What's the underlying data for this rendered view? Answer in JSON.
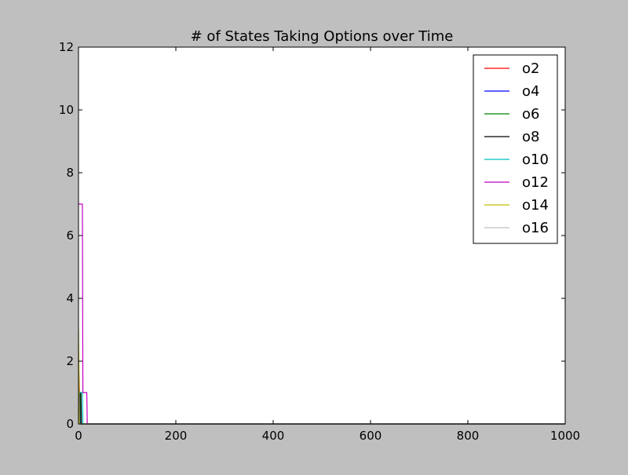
{
  "chart_data": {
    "type": "line",
    "title": "# of States Taking Options over Time",
    "xlabel": "",
    "ylabel": "",
    "xlim": [
      0,
      1000
    ],
    "ylim": [
      0,
      12
    ],
    "x_ticks": [
      "0",
      "200",
      "400",
      "600",
      "800",
      "1000"
    ],
    "y_ticks": [
      "0",
      "2",
      "4",
      "6",
      "8",
      "10",
      "12"
    ],
    "x_tick_values": [
      0,
      200,
      400,
      600,
      800,
      1000
    ],
    "y_tick_values": [
      0,
      2,
      4,
      6,
      8,
      10,
      12
    ],
    "grid": false,
    "legend_position": "top-right",
    "series": [
      {
        "name": "o2",
        "color": "#ff0000",
        "points": [
          [
            0,
            2
          ],
          [
            2,
            1
          ],
          [
            4,
            0
          ],
          [
            1000,
            0
          ]
        ]
      },
      {
        "name": "o4",
        "color": "#0000ff",
        "points": [
          [
            0,
            1
          ],
          [
            3,
            1
          ],
          [
            3,
            0
          ],
          [
            1000,
            0
          ]
        ]
      },
      {
        "name": "o6",
        "color": "#008000",
        "points": [
          [
            0,
            1
          ],
          [
            4,
            1
          ],
          [
            5,
            0
          ],
          [
            1000,
            0
          ]
        ]
      },
      {
        "name": "o8",
        "color": "#000000",
        "points": [
          [
            0,
            1
          ],
          [
            5,
            1
          ],
          [
            6,
            0
          ],
          [
            1000,
            0
          ]
        ]
      },
      {
        "name": "o10",
        "color": "#00bfbf",
        "points": [
          [
            0,
            1
          ],
          [
            8,
            1
          ],
          [
            9,
            0
          ],
          [
            1000,
            0
          ]
        ]
      },
      {
        "name": "o12",
        "color": "#bf00bf",
        "points": [
          [
            0,
            7
          ],
          [
            8,
            7
          ],
          [
            9,
            1
          ],
          [
            17,
            1
          ],
          [
            18,
            0
          ],
          [
            1000,
            0
          ]
        ]
      },
      {
        "name": "o14",
        "color": "#bfbf00",
        "points": [
          [
            0,
            3
          ],
          [
            2,
            0
          ],
          [
            1000,
            0
          ]
        ]
      },
      {
        "name": "o16",
        "color": "#bfbfbf",
        "points": [
          [
            0,
            0
          ],
          [
            1000,
            0
          ]
        ]
      }
    ]
  }
}
